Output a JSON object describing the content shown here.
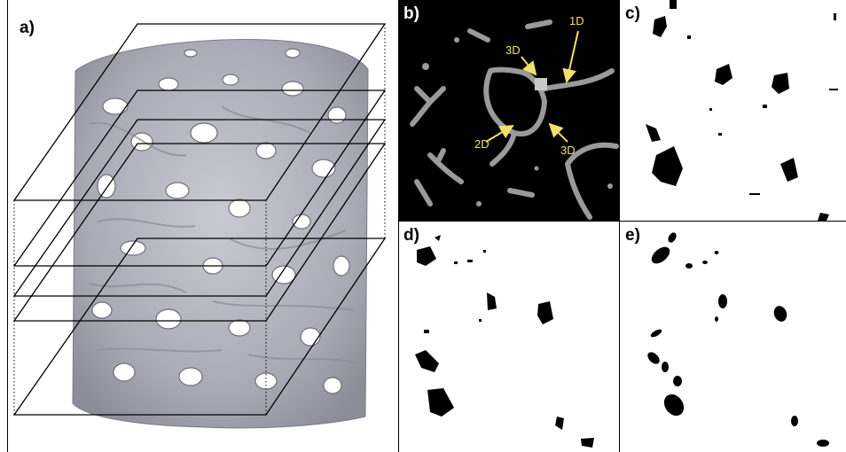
{
  "panels": {
    "a": {
      "label": "a)"
    },
    "b": {
      "label": "b)",
      "annotations": [
        {
          "text": "1D"
        },
        {
          "text": "3D"
        },
        {
          "text": "2D"
        },
        {
          "text": "3D"
        }
      ],
      "arrow_color": "#f2e06a"
    },
    "c": {
      "label": "c)"
    },
    "d": {
      "label": "d)"
    },
    "e": {
      "label": "e)"
    }
  }
}
